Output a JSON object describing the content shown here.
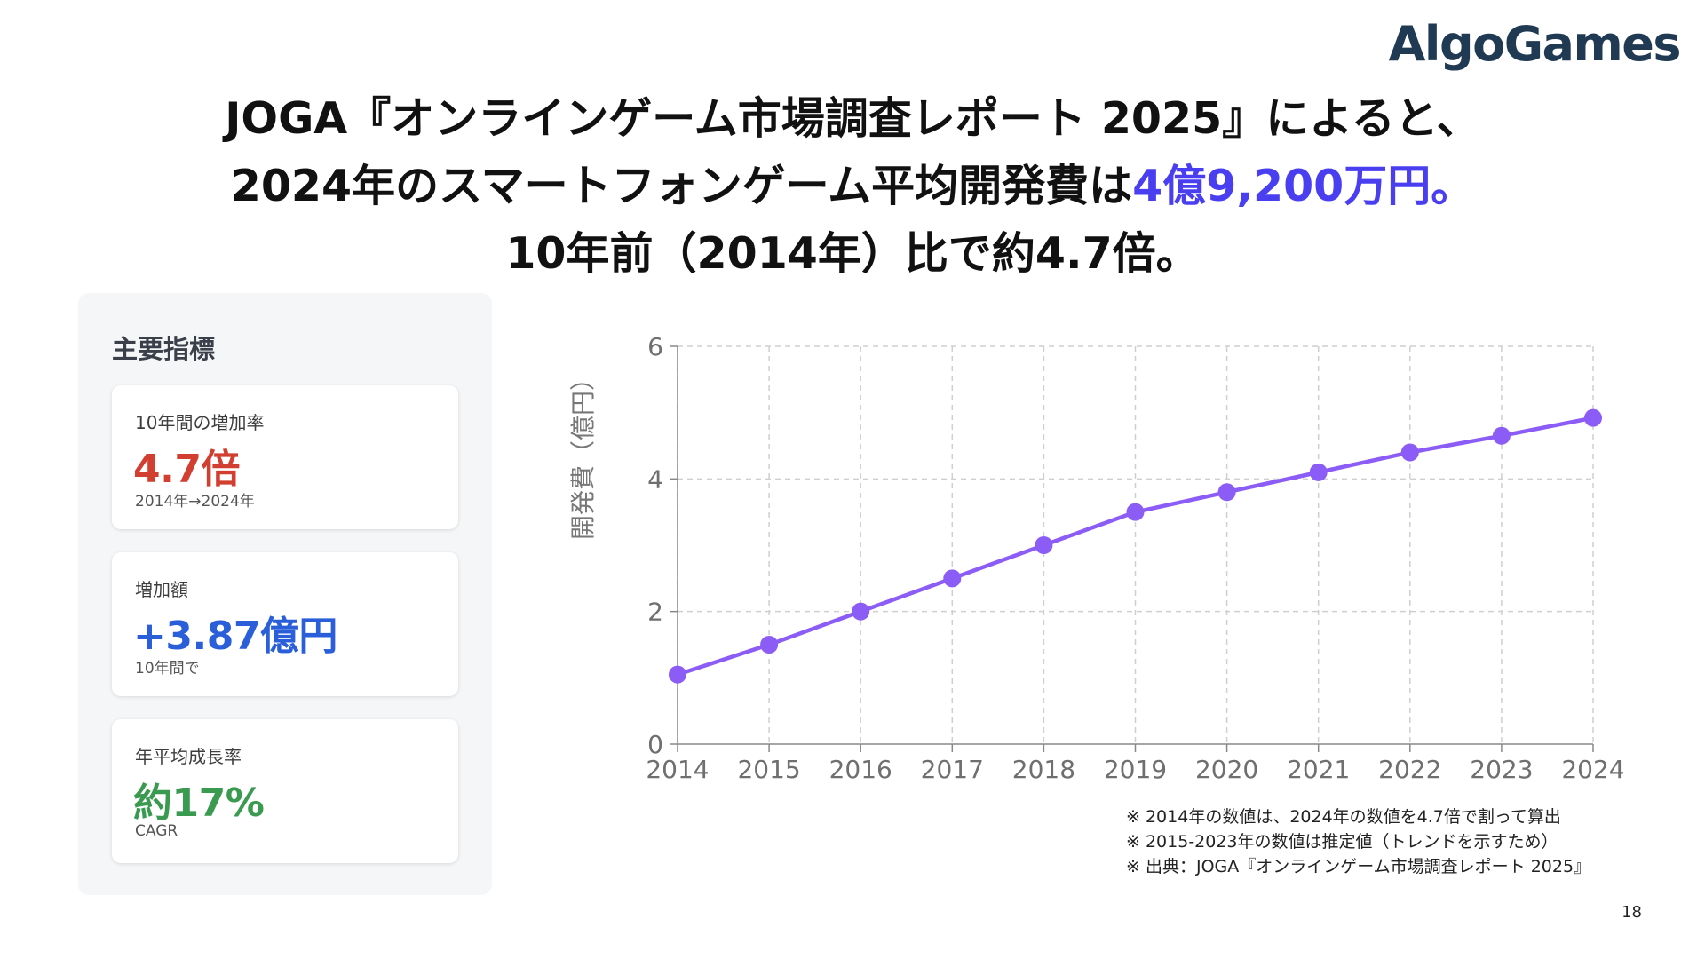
{
  "brand": {
    "logo_text": "AlgoGames",
    "accent_color": "#4a3ff0"
  },
  "headline": {
    "line1": "JOGA『オンラインゲーム市場調査レポート 2025』によると、",
    "line2_prefix": "2024年のスマートフォンゲーム平均開発費は",
    "line2_highlight": "4億9,200万円。",
    "line3": "10年前（2014年）比で約4.7倍。"
  },
  "metrics_panel": {
    "title": "主要指標",
    "cards": [
      {
        "label": "10年間の増加率",
        "value": "4.7倍",
        "sub": "2014年→2024年",
        "color": "#d23f31"
      },
      {
        "label": "増加額",
        "value": "+3.87億円",
        "sub": "10年間で",
        "color": "#2b5fd9"
      },
      {
        "label": "年平均成長率",
        "value": "約17%",
        "sub": "CAGR",
        "color": "#3a9a4f"
      }
    ]
  },
  "chart_data": {
    "type": "line",
    "x": [
      2014,
      2015,
      2016,
      2017,
      2018,
      2019,
      2020,
      2021,
      2022,
      2023,
      2024
    ],
    "series": [
      {
        "values": [
          1.05,
          1.5,
          2.0,
          2.5,
          3.0,
          3.5,
          3.8,
          4.1,
          4.4,
          4.65,
          4.92
        ],
        "color": "#8b5cf6"
      }
    ],
    "ylabel": "開発費（億円）",
    "xlabel": "",
    "ylim": [
      0,
      6
    ],
    "yticks": [
      0,
      2,
      4,
      6
    ],
    "xticks": [
      "2014",
      "2015",
      "2016",
      "2017",
      "2018",
      "2019",
      "2020",
      "2021",
      "2022",
      "2023",
      "2024"
    ],
    "grid": true,
    "grid_style": "dashed",
    "markers": true
  },
  "notes": [
    "※ 2014年の数値は、2024年の数値を4.7倍で割って算出",
    "※ 2015-2023年の数値は推定値（トレンドを示すため）",
    "※ 出典：JOGA『オンラインゲーム市場調査レポート 2025』"
  ],
  "page_number": "18"
}
